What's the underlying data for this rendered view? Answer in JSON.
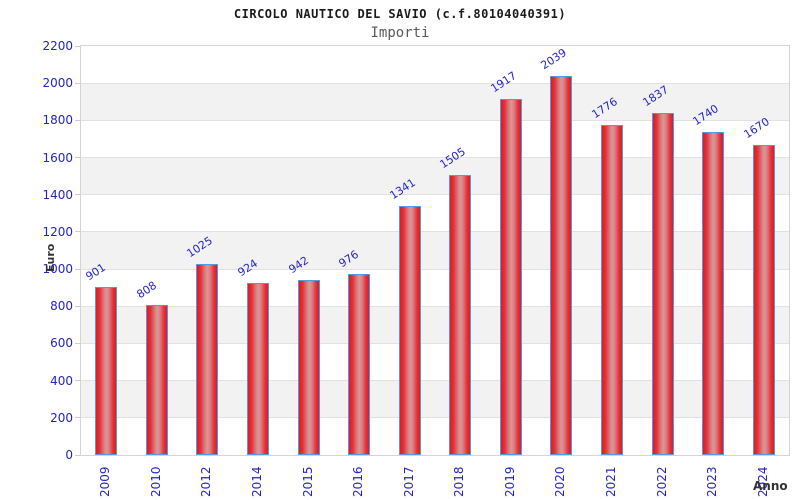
{
  "chart_data": {
    "type": "bar",
    "title": "CIRCOLO NAUTICO DEL SAVIO (c.f.80104040391)",
    "subtitle": "Importi",
    "xlabel": "Anno",
    "ylabel": "Euro",
    "categories": [
      "2009",
      "2010",
      "2012",
      "2014",
      "2015",
      "2016",
      "2017",
      "2018",
      "2019",
      "2020",
      "2021",
      "2022",
      "2023",
      "2024"
    ],
    "values": [
      901,
      808,
      1025,
      924,
      942,
      976,
      1341,
      1505,
      1917,
      2039,
      1776,
      1837,
      1740,
      1670
    ],
    "ylim": [
      0,
      2200
    ],
    "ytick_step": 200,
    "grid": true,
    "legend": false,
    "band_fill": "alternating horizontal stripes per 200 units",
    "colors": {
      "bar_edge": "#e3191f",
      "bar_center": "#d9969a",
      "bar_border": "#4f9be8",
      "tick_label": "#2424c8",
      "value_label": "#2424c8",
      "band_gray": "#f2f2f2",
      "gridline": "#e2e2e2",
      "plot_border": "#d4d4d4",
      "axis_title": "#333333",
      "title": "#1a1a1a",
      "subtitle": "#5a5a5a",
      "tick_mark": "#c9c9ef"
    }
  }
}
